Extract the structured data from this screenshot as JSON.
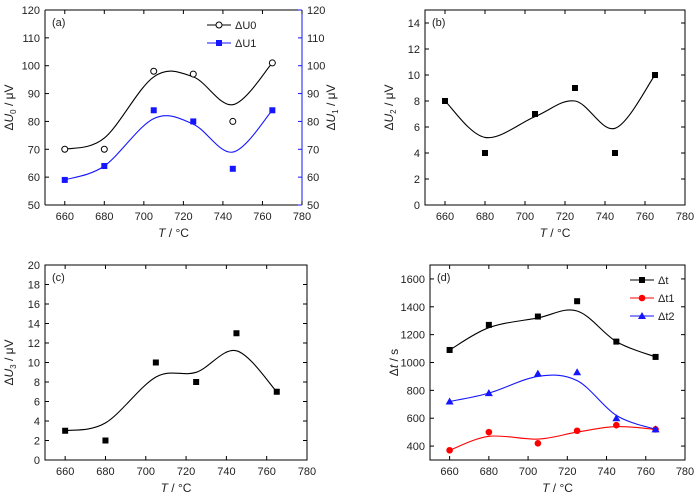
{
  "chart_data": [
    {
      "id": "a",
      "type": "scatter",
      "panel_label": "(a)",
      "xlabel": "T / °C",
      "ylabel": "ΔU0 / μV",
      "y2label": "ΔU1 / μV",
      "xlim": [
        650,
        780
      ],
      "xticks": [
        660,
        680,
        700,
        720,
        740,
        760,
        780
      ],
      "ylim": [
        50,
        120
      ],
      "yticks": [
        50,
        60,
        70,
        80,
        90,
        100,
        110,
        120
      ],
      "y2lim": [
        50,
        120
      ],
      "y2ticks": [
        50,
        60,
        70,
        80,
        90,
        100,
        110,
        120
      ],
      "y2color": "#1515ff",
      "legend_position": "top-right",
      "series": [
        {
          "name": "ΔU0",
          "axis": "left",
          "marker": "open-circle",
          "color": "#000000",
          "x": [
            660,
            680,
            705,
            725,
            745,
            765
          ],
          "y": [
            70,
            70,
            98,
            97,
            80,
            101
          ],
          "curve_y": [
            70,
            74,
            96,
            96,
            86,
            101
          ]
        },
        {
          "name": "ΔU1",
          "axis": "right",
          "marker": "square",
          "color": "#1515ff",
          "x": [
            660,
            680,
            705,
            725,
            745,
            765
          ],
          "y": [
            59,
            64,
            84,
            80,
            63,
            84
          ],
          "curve_y": [
            59,
            64,
            81,
            79,
            69,
            84
          ]
        }
      ]
    },
    {
      "id": "b",
      "type": "scatter",
      "panel_label": "(b)",
      "xlabel": "T / °C",
      "ylabel": "ΔU2 / μV",
      "xlim": [
        650,
        780
      ],
      "xticks": [
        660,
        680,
        700,
        720,
        740,
        760,
        780
      ],
      "ylim": [
        0,
        15
      ],
      "yticks": [
        0,
        2,
        4,
        6,
        8,
        10,
        12,
        14
      ],
      "series": [
        {
          "name": "ΔU2",
          "marker": "square",
          "color": "#000000",
          "x": [
            660,
            680,
            705,
            725,
            745,
            765
          ],
          "y": [
            8,
            4,
            7,
            9,
            4,
            10
          ],
          "curve_y": [
            8,
            5.2,
            6.8,
            8,
            5.9,
            10
          ]
        }
      ]
    },
    {
      "id": "c",
      "type": "scatter",
      "panel_label": "(c)",
      "xlabel": "T / °C",
      "ylabel": "ΔU3 / μV",
      "xlim": [
        650,
        780
      ],
      "xticks": [
        660,
        680,
        700,
        720,
        740,
        760,
        780
      ],
      "ylim": [
        0,
        20
      ],
      "yticks": [
        0,
        2,
        4,
        6,
        8,
        10,
        12,
        14,
        16,
        18,
        20
      ],
      "series": [
        {
          "name": "ΔU3",
          "marker": "square",
          "color": "#000000",
          "x": [
            660,
            680,
            705,
            725,
            745,
            765
          ],
          "y": [
            3,
            2,
            10,
            8,
            13,
            7
          ],
          "curve_y": [
            3,
            3.8,
            8.5,
            9,
            11.2,
            7
          ]
        }
      ]
    },
    {
      "id": "d",
      "type": "line",
      "panel_label": "(d)",
      "xlabel": "T / °C",
      "ylabel": "Δt / s",
      "xlim": [
        650,
        780
      ],
      "xticks": [
        660,
        680,
        700,
        720,
        740,
        760,
        780
      ],
      "ylim": [
        300,
        1700
      ],
      "yticks": [
        400,
        600,
        800,
        1000,
        1200,
        1400,
        1600
      ],
      "legend_position": "top-right",
      "series": [
        {
          "name": "Δt",
          "marker": "square",
          "color": "#000000",
          "x": [
            660,
            680,
            705,
            725,
            745,
            765
          ],
          "y": [
            1090,
            1270,
            1330,
            1440,
            1150,
            1040
          ],
          "curve_y": [
            1090,
            1250,
            1320,
            1370,
            1150,
            1040
          ]
        },
        {
          "name": "Δt1",
          "marker": "circle",
          "color": "#ff0000",
          "x": [
            660,
            680,
            705,
            725,
            745,
            765
          ],
          "y": [
            370,
            500,
            420,
            510,
            550,
            520
          ],
          "curve_y": [
            370,
            470,
            450,
            500,
            540,
            520
          ]
        },
        {
          "name": "Δt2",
          "marker": "triangle",
          "color": "#1515ff",
          "x": [
            660,
            680,
            705,
            725,
            745,
            765
          ],
          "y": [
            720,
            780,
            920,
            930,
            600,
            520
          ],
          "curve_y": [
            720,
            780,
            900,
            870,
            620,
            520
          ]
        }
      ]
    }
  ]
}
